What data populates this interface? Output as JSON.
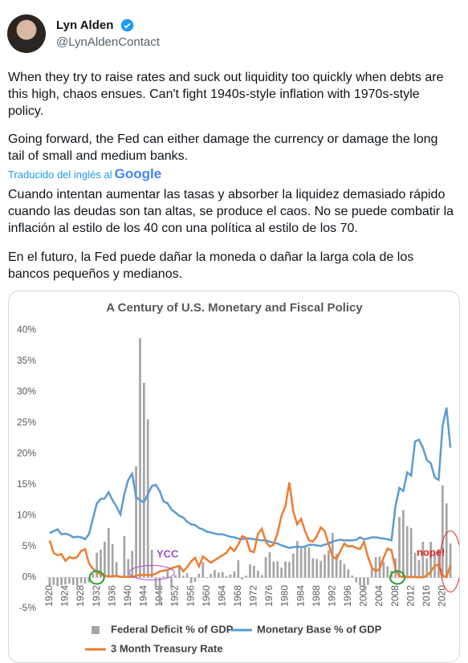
{
  "tweet": {
    "name": "Lyn Alden",
    "handle": "@LynAldenContact",
    "text": [
      "When they try to raise rates and suck out liquidity too quickly when debts are this high, chaos ensues. Can't fight 1940s-style inflation with 1970s-style policy.",
      "Going forward, the Fed can either damage the currency or damage the long tail of small and medium banks."
    ],
    "translated_by": "Traducido del inglés al",
    "translator": "Google",
    "translation": [
      "Cuando intentan aumentar las tasas y absorber la liquidez demasiado rápido cuando las deudas son tan altas, se produce el caos. No se puede combatir la inflación al estilo de los 40 con una política al estilo de los 70.",
      "En el futuro, la Fed puede dañar la moneda o dañar la larga cola de los bancos pequeños y medianos."
    ]
  },
  "chart_data": {
    "type": "combo",
    "title": "A Century of U.S. Monetary and Fiscal Policy",
    "x": [
      1920,
      1921,
      1922,
      1923,
      1924,
      1925,
      1926,
      1927,
      1928,
      1929,
      1930,
      1931,
      1932,
      1933,
      1934,
      1935,
      1936,
      1937,
      1938,
      1939,
      1940,
      1941,
      1942,
      1943,
      1944,
      1945,
      1946,
      1947,
      1948,
      1949,
      1950,
      1951,
      1952,
      1953,
      1954,
      1955,
      1956,
      1957,
      1958,
      1959,
      1960,
      1961,
      1962,
      1963,
      1964,
      1965,
      1966,
      1967,
      1968,
      1969,
      1970,
      1971,
      1972,
      1973,
      1974,
      1975,
      1976,
      1977,
      1978,
      1979,
      1980,
      1981,
      1982,
      1983,
      1984,
      1985,
      1986,
      1987,
      1988,
      1989,
      1990,
      1991,
      1992,
      1993,
      1994,
      1995,
      1996,
      1997,
      1998,
      1999,
      2000,
      2001,
      2002,
      2003,
      2004,
      2005,
      2006,
      2007,
      2008,
      2009,
      2010,
      2011,
      2012,
      2013,
      2014,
      2015,
      2016,
      2017,
      2018,
      2019,
      2020,
      2021,
      2022
    ],
    "series": [
      {
        "name": "Federal Deficit % of GDP",
        "kind": "bar",
        "color": "#a5a5a5",
        "values": [
          -1.5,
          -1.2,
          -1.4,
          -1.2,
          -1.1,
          -1,
          -1.2,
          -1.3,
          -0.9,
          -1,
          -0.8,
          0.6,
          4,
          4.5,
          5.8,
          8,
          5.4,
          2.5,
          0.1,
          6.7,
          3,
          4.3,
          18,
          38.7,
          31.5,
          25.6,
          4.5,
          -1.7,
          -4.5,
          0.2,
          1,
          -1.7,
          0.4,
          1.7,
          0.3,
          0.7,
          -0.9,
          -0.7,
          0.6,
          2.5,
          -0.1,
          0.6,
          1.2,
          0.8,
          0.9,
          0.2,
          0.5,
          1,
          2.8,
          -0.3,
          0.3,
          2.1,
          1.9,
          1.1,
          0.4,
          3.3,
          4.1,
          2.6,
          2.6,
          1.6,
          2.6,
          2.5,
          3.9,
          5.9,
          4.7,
          5,
          4.9,
          3.1,
          3,
          2.7,
          3.7,
          4.4,
          7.2,
          3.8,
          2.8,
          2.2,
          1.3,
          0.3,
          -0.8,
          -1.3,
          -2.3,
          -1.2,
          1.5,
          3.3,
          3.4,
          2.5,
          1.8,
          1.1,
          3.1,
          9.8,
          10.9,
          8.3,
          8,
          4,
          2.8,
          5.8,
          3.1,
          5.8,
          3.8,
          4.6,
          14.9,
          12,
          5.5
        ]
      },
      {
        "name": "Monetary Base % of GDP",
        "kind": "line",
        "color": "#5b9bd5",
        "values": [
          7.2,
          7.5,
          7.8,
          7,
          7.1,
          6.9,
          6.5,
          6.6,
          6.5,
          6.2,
          7,
          9.5,
          12,
          12.7,
          12.8,
          13.8,
          12.5,
          11.5,
          10.2,
          13.5,
          15.8,
          16.8,
          13,
          12.5,
          12.2,
          13.5,
          14.8,
          15,
          14,
          12.3,
          12,
          11,
          10.5,
          10,
          9.7,
          9,
          8.6,
          8.5,
          8,
          7.8,
          7.4,
          7.3,
          7.1,
          7,
          7,
          6.8,
          6.6,
          6.5,
          6.3,
          6.2,
          6.3,
          6.3,
          6.2,
          6.1,
          6,
          6,
          5.8,
          5.6,
          5.5,
          5.2,
          5,
          4.8,
          4.9,
          5,
          4.9,
          5,
          5.3,
          5.3,
          5.2,
          5.1,
          5.3,
          5.5,
          5.8,
          6,
          6.1,
          6,
          6,
          6,
          6.1,
          6.5,
          6.2,
          6.3,
          6.5,
          6.5,
          6.4,
          6.3,
          6.2,
          6,
          11.5,
          14.5,
          14,
          17,
          16.5,
          22,
          22.3,
          21,
          19,
          18.5,
          16.2,
          15.8,
          24.5,
          27.5,
          21
        ]
      },
      {
        "name": "3 Month Treasury Rate",
        "kind": "line",
        "color": "#ed7d31",
        "values": [
          6,
          4,
          3.6,
          3.8,
          2.7,
          3.3,
          3.1,
          3.3,
          4.3,
          4.6,
          2.3,
          1.4,
          0.9,
          0.5,
          0.3,
          0.2,
          0.2,
          0.3,
          0.1,
          0.1,
          0.1,
          0.1,
          0.3,
          0.4,
          0.4,
          0.4,
          0.4,
          0.6,
          1,
          1.1,
          1.2,
          1.5,
          1.7,
          1.9,
          1,
          1.7,
          2.6,
          3.2,
          1.8,
          3.4,
          2.9,
          2.4,
          2.8,
          3.2,
          3.6,
          4,
          4.9,
          4.3,
          5.3,
          6.7,
          6.4,
          4.3,
          4.1,
          7,
          7.9,
          5.8,
          5,
          5.3,
          7.2,
          10,
          11.5,
          15.4,
          10.7,
          8.6,
          9.5,
          7.5,
          6,
          5.8,
          6.7,
          8.1,
          7.5,
          5.4,
          3.4,
          3,
          4.3,
          5.5,
          5,
          5.1,
          4.8,
          4.6,
          5.8,
          3.4,
          1.6,
          1,
          1.4,
          3.2,
          4.7,
          4.4,
          1.4,
          0.15,
          0.14,
          0.05,
          0.09,
          0.06,
          0.03,
          0.05,
          0.32,
          0.93,
          1.94,
          2.06,
          0.37,
          0.05,
          2
        ]
      }
    ],
    "xlim": [
      1919,
      2023
    ],
    "xticks": [
      1920,
      1924,
      1928,
      1932,
      1936,
      1940,
      1944,
      1948,
      1952,
      1956,
      1960,
      1964,
      1968,
      1972,
      1976,
      1980,
      1984,
      1988,
      1992,
      1996,
      2000,
      2004,
      2008,
      2012,
      2016,
      2020
    ],
    "ylim": [
      -5,
      40
    ],
    "yticks": [
      {
        "value": -5,
        "label": "-5%"
      },
      {
        "value": 0,
        "label": "0%"
      },
      {
        "value": 5,
        "label": "5%"
      },
      {
        "value": 10,
        "label": "10%"
      },
      {
        "value": 15,
        "label": "15%"
      },
      {
        "value": 20,
        "label": "20%"
      },
      {
        "value": 25,
        "label": "25%"
      },
      {
        "value": 30,
        "label": "30%"
      },
      {
        "value": 35,
        "label": "35%"
      },
      {
        "value": 40,
        "label": "40%"
      }
    ],
    "grid": false,
    "legend": "bottom",
    "annotations": [
      "YCC",
      "nope!"
    ]
  }
}
